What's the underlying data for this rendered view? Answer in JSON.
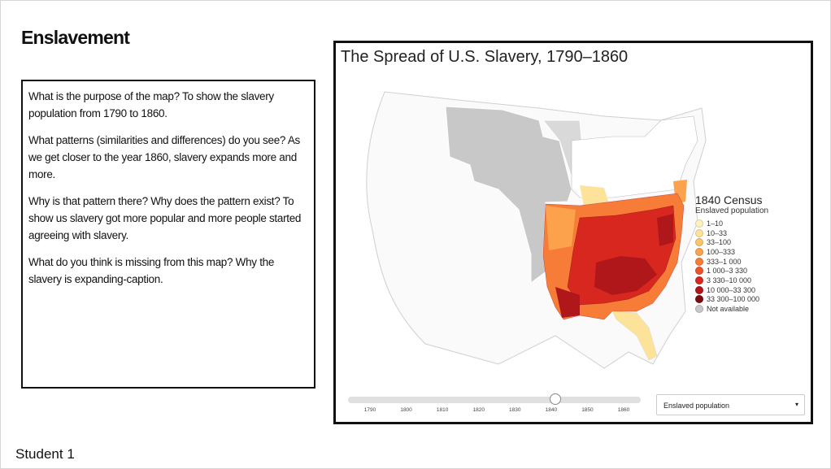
{
  "slide": {
    "title": "Enslavement",
    "paragraphs": [
      "What is the purpose of the map? To show the slavery population from 1790 to 1860.",
      "What patterns (similarities and differences) do you see? As we get closer to the year 1860, slavery expands more and more.",
      "Why is that pattern there? Why does the pattern exist? To show us slavery got more popular and more people started agreeing with slavery.",
      "What do you think is missing from this map? Why the slavery is expanding-caption."
    ],
    "footer": "Student 1"
  },
  "map": {
    "title": "The Spread of U.S. Slavery, 1790–1860",
    "legend": {
      "title": "1840 Census",
      "subtitle": "Enslaved population",
      "items": [
        {
          "label": "1–10",
          "color": "#fff1c0"
        },
        {
          "label": "10–33",
          "color": "#fde39a"
        },
        {
          "label": "33–100",
          "color": "#fdc56c"
        },
        {
          "label": "100–333",
          "color": "#fca24d"
        },
        {
          "label": "333–1 000",
          "color": "#f77c38"
        },
        {
          "label": "1 000–3 330",
          "color": "#ee522b"
        },
        {
          "label": "3 330–10 000",
          "color": "#d7271f"
        },
        {
          "label": "10 000–33 300",
          "color": "#b0171b"
        },
        {
          "label": "33 300–100 000",
          "color": "#7c0d0f"
        },
        {
          "label": "Not available",
          "color": "#c8c8c8"
        }
      ]
    },
    "timeline": [
      "1790",
      "1800",
      "1810",
      "1820",
      "1830",
      "1840",
      "1850",
      "1860"
    ],
    "dropdown": "Enslaved population"
  }
}
